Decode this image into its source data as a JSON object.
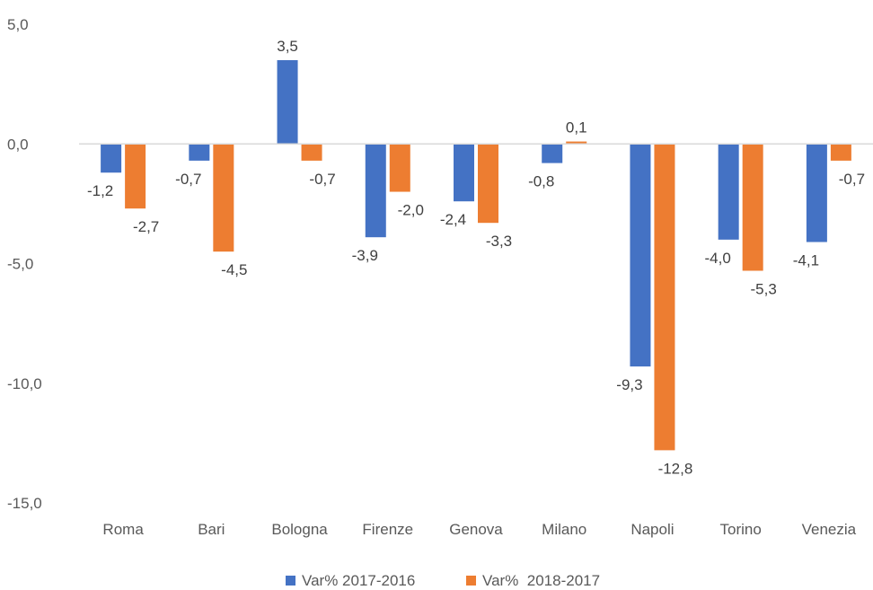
{
  "chart_data": {
    "type": "bar",
    "categories": [
      "Roma",
      "Bari",
      "Bologna",
      "Firenze",
      "Genova",
      "Milano",
      "Napoli",
      "Torino",
      "Venezia"
    ],
    "series": [
      {
        "name": "Var% 2017-2016",
        "color": "#4472C4",
        "values": [
          -1.2,
          -0.7,
          3.5,
          -3.9,
          -2.4,
          -0.8,
          -9.3,
          -4.0,
          -4.1
        ],
        "labels": [
          "-1,2",
          "-0,7",
          "3,5",
          "-3,9",
          "-2,4",
          "-0,8",
          "-9,3",
          "-4,0",
          "-4,1"
        ]
      },
      {
        "name": "Var%  2018-2017",
        "color": "#ED7D31",
        "values": [
          -2.7,
          -4.5,
          -0.7,
          -2.0,
          -3.3,
          0.1,
          -12.8,
          -5.3,
          -0.7
        ],
        "labels": [
          "-2,7",
          "-4,5",
          "-0,7",
          "-2,0",
          "-3,3",
          "0,1",
          "-12,8",
          "-5,3",
          "-0,7"
        ]
      }
    ],
    "ylim": [
      -15,
      5
    ],
    "yticks": [
      5,
      0,
      -5,
      -10,
      -15
    ],
    "ytick_labels": [
      "5,0",
      "0,0",
      "-5,0",
      "-10,0",
      "-15,0"
    ],
    "grid": false,
    "legend_position": "bottom",
    "title": "",
    "xlabel": "",
    "ylabel": ""
  }
}
